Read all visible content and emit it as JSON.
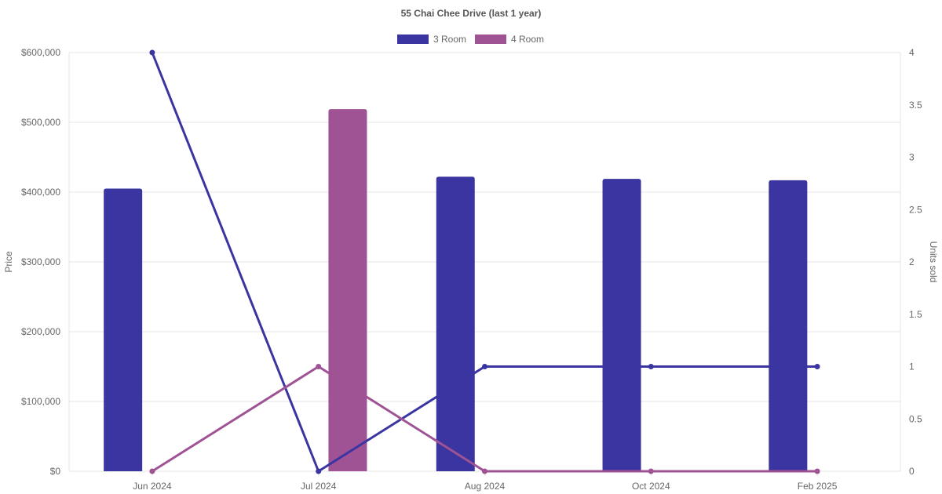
{
  "chart_data": {
    "type": "bar",
    "title": "55 Chai Chee Drive (last 1 year)",
    "categories": [
      "Jun 2024",
      "Jul 2024",
      "Aug 2024",
      "Oct 2024",
      "Feb 2025"
    ],
    "y_left": {
      "label": "Price",
      "ylim": [
        0,
        600000
      ],
      "ticks": [
        0,
        100000,
        200000,
        300000,
        400000,
        500000,
        600000
      ],
      "tick_labels": [
        "$0",
        "$100,000",
        "$200,000",
        "$300,000",
        "$400,000",
        "$500,000",
        "$600,000"
      ]
    },
    "y_right": {
      "label": "Units sold",
      "ylim": [
        0,
        4
      ],
      "ticks": [
        0,
        0.5,
        1,
        1.5,
        2,
        2.5,
        3,
        3.5,
        4
      ],
      "tick_labels": [
        "0",
        "0.5",
        "1",
        "1.5",
        "2",
        "2.5",
        "3",
        "3.5",
        "4"
      ]
    },
    "series": [
      {
        "name": "3 Room",
        "color": "#3a35a0",
        "price": [
          405000,
          null,
          422000,
          419000,
          417000
        ],
        "units": [
          4,
          0,
          1,
          1,
          1
        ]
      },
      {
        "name": "4 Room",
        "color": "#9f5294",
        "price": [
          null,
          519000,
          null,
          null,
          null
        ],
        "units": [
          0,
          1,
          0,
          0,
          0
        ]
      }
    ],
    "legend_position": "top-center",
    "grid": true
  }
}
